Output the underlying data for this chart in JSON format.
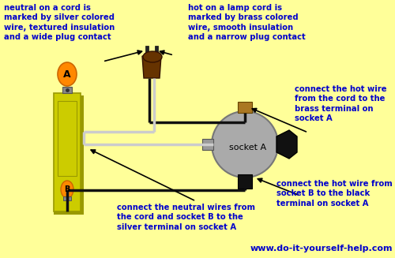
{
  "bg_color": "#FFFF99",
  "text_color": "#0000CC",
  "website": "www.do-it-yourself-help.com",
  "lamp_body_color": "#CCCC00",
  "lamp_body_dark": "#999900",
  "lamp_bulb_color": "#FF8800",
  "socket_a_color": "#AAAAAA",
  "brass_terminal_color": "#AA7722",
  "silver_terminal_color": "#999999",
  "black_terminal_color": "#111111",
  "plug_color": "#663300",
  "wire_black": "#111111",
  "wire_white": "#CCCCCC",
  "annotation1": "neutral on a cord is\nmarked by silver colored\nwire, textured insulation\nand a wide plug contact",
  "annotation2": "hot on a lamp cord is\nmarked by brass colored\nwire, smooth insulation\nand a narrow plug contact",
  "annotation3": "connect the hot wire\nfrom the cord to the\nbrass terminal on\nsocket A",
  "annotation4": "connect the neutral wires from\nthe cord and socket B to the\nsilver terminal on socket A",
  "annotation5": "connect the hot wire from\nsocket B to the black\nterminal on socket A"
}
